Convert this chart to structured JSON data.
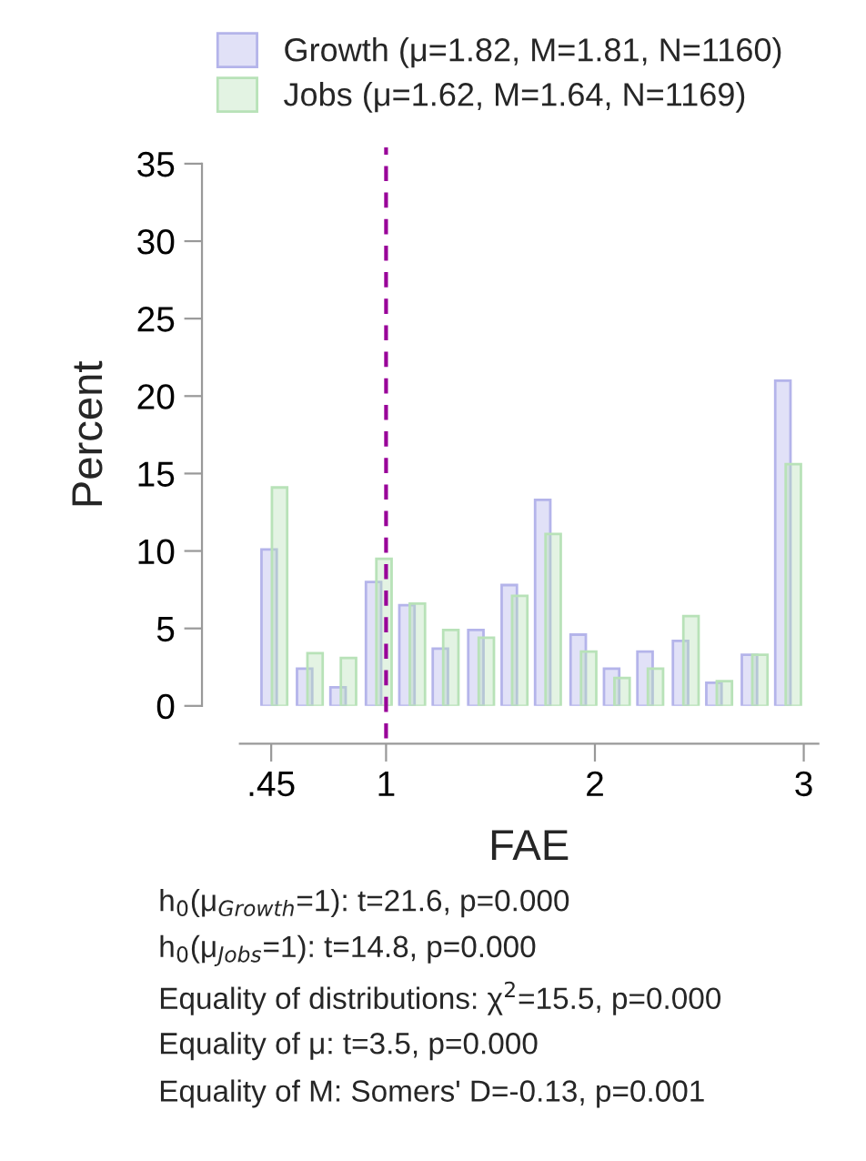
{
  "chart_data": {
    "type": "bar",
    "xlabel": "FAE",
    "ylabel": "Percent",
    "series": [
      {
        "name": "Growth (μ=1.82, M=1.81, N=1160)",
        "color": "#b4b4ea",
        "x": [
          0.44,
          0.61,
          0.77,
          0.94,
          1.1,
          1.26,
          1.43,
          1.59,
          1.75,
          1.92,
          2.08,
          2.24,
          2.41,
          2.57,
          2.74,
          2.9
        ],
        "values": [
          10.1,
          2.4,
          1.2,
          8.0,
          6.5,
          3.7,
          4.9,
          7.8,
          13.3,
          4.6,
          2.4,
          3.5,
          4.2,
          1.5,
          3.3,
          21.0
        ]
      },
      {
        "name": "Jobs (μ=1.62, M=1.64, N=1169)",
        "color": "#b8e2b8",
        "x": [
          0.49,
          0.66,
          0.82,
          0.99,
          1.15,
          1.31,
          1.48,
          1.64,
          1.8,
          1.97,
          2.13,
          2.29,
          2.46,
          2.62,
          2.79,
          2.95
        ],
        "values": [
          14.1,
          3.4,
          3.1,
          9.5,
          6.6,
          4.9,
          4.4,
          7.1,
          11.1,
          3.5,
          1.8,
          2.4,
          5.8,
          1.6,
          3.3,
          15.6
        ]
      }
    ],
    "xlim": [
      0.3,
      3.07
    ],
    "xticks": [
      {
        "value": 0.45,
        "label": ".45"
      },
      1,
      2,
      3
    ],
    "ylim": [
      0,
      35
    ],
    "yticks": [
      0,
      5,
      10,
      15,
      20,
      25,
      30,
      35
    ],
    "ref_lines": [
      {
        "axis": "x",
        "value": 1,
        "color": "#990099",
        "line_style": "dashed"
      }
    ],
    "legend": "top",
    "grid": false,
    "annotations": [
      "h$_{0}$(μ$_{Growth}$=1): t=21.6, p=0.000",
      "h$_{0}$(μ$_{Jobs}$=1): t=14.8, p=0.000",
      "Equality of distributions: χ$^{2}$=15.5, p=0.000",
      "Equality of μ: t=3.5, p=0.000",
      "Equality of M: Somers' D=-0.13, p=0.001"
    ]
  }
}
